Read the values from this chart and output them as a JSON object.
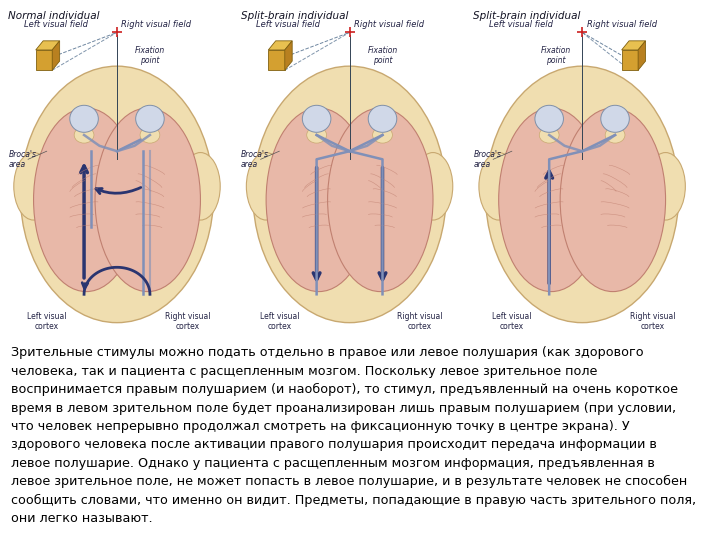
{
  "bg_color": "#ffffff",
  "panel_bg": "#c8dff0",
  "skull_color": "#f0deb0",
  "skull_edge": "#c8a870",
  "brain_color": "#e8b8a8",
  "brain_edge": "#c08070",
  "eye_color": "#d0d8e8",
  "eye_edge": "#8090a8",
  "nerve_color": "#8090b8",
  "arrow_color": "#2a3570",
  "cube_front": "#d4a030",
  "cube_top": "#e8c050",
  "cube_right": "#b88020",
  "cube_edge": "#806010",
  "dashed_color": "#4a6888",
  "fixation_color": "#cc2020",
  "text_color": "#000000",
  "russian_text": "Зрительные стимулы можно подать отдельно в правое или левое полушария (как здорового человека, так и пациента с расщепленным мозгом. Поскольку левое зрительное поле воспринимается правым полушарием (и наоборот), то стимул, предъявленный на очень короткое время в левом зрительном поле будет проанализирован лишь правым полушарием (при условии, что человек непрерывно продолжал смотреть на фиксационную точку в центре экрана). У здорового человека после активации правого полушария происходит передача информации в левое полушарие. Однако у пациента с расщепленным мозгом информация, предъявленная в левое зрительное поле, не может попасть в левое полушарие, и в результате человек не способен сообщить словами, что именно он видит. Предметы, попадающие в правую часть зрительного поля, они легко называют.",
  "panel1_title": "Normal individual",
  "panel2_title": "Split-brain individual",
  "panel3_title": "Split-brain individual",
  "text_fontsize": 9.2,
  "label_fontsize": 6.0,
  "title_fontsize": 7.5
}
